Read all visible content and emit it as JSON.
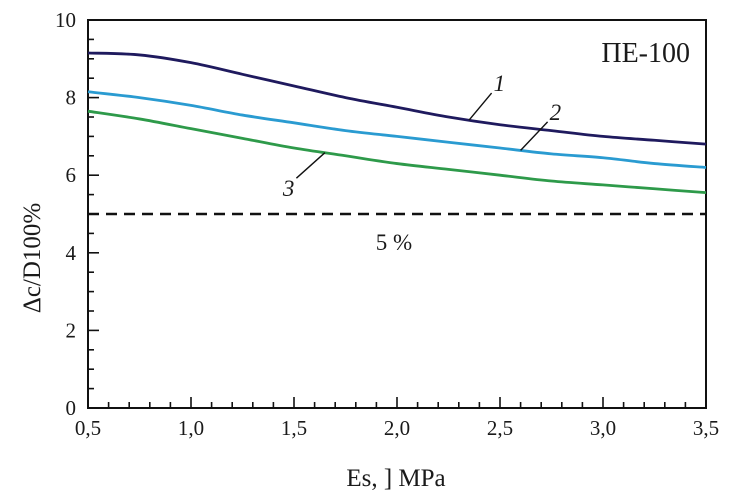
{
  "chart_data": {
    "type": "line",
    "title": "ПЕ-100",
    "ylabel": "Δc/D100%",
    "xlabel": "Es, ] MPa",
    "xlim": [
      0.5,
      3.5
    ],
    "ylim": [
      0,
      10
    ],
    "x_ticks": [
      "0,5",
      "1,0",
      "1,5",
      "2,0",
      "2,5",
      "3,0",
      "3,5"
    ],
    "y_ticks": [
      "0",
      "2",
      "4",
      "6",
      "8",
      "10"
    ],
    "grid": false,
    "series": [
      {
        "name": "1",
        "color": "#1f1a5e",
        "x": [
          0.5,
          0.75,
          1.0,
          1.25,
          1.5,
          1.75,
          2.0,
          2.25,
          2.5,
          2.75,
          3.0,
          3.25,
          3.5
        ],
        "y": [
          9.15,
          9.1,
          8.9,
          8.6,
          8.3,
          8.0,
          7.75,
          7.5,
          7.3,
          7.15,
          7.0,
          6.9,
          6.8
        ]
      },
      {
        "name": "2",
        "color": "#2a9bd1",
        "x": [
          0.5,
          0.75,
          1.0,
          1.25,
          1.5,
          1.75,
          2.0,
          2.25,
          2.5,
          2.75,
          3.0,
          3.25,
          3.5
        ],
        "y": [
          8.15,
          8.0,
          7.8,
          7.55,
          7.35,
          7.15,
          7.0,
          6.85,
          6.7,
          6.55,
          6.45,
          6.3,
          6.2
        ]
      },
      {
        "name": "3",
        "color": "#2e9a4a",
        "x": [
          0.5,
          0.75,
          1.0,
          1.25,
          1.5,
          1.75,
          2.0,
          2.25,
          2.5,
          2.75,
          3.0,
          3.25,
          3.5
        ],
        "y": [
          7.65,
          7.45,
          7.2,
          6.95,
          6.7,
          6.5,
          6.3,
          6.15,
          6.0,
          5.85,
          5.75,
          5.65,
          5.55
        ]
      }
    ],
    "reference_line": {
      "y": 5.0,
      "label": "5 %",
      "style": "dashed",
      "color": "#111111"
    },
    "curve_labels": [
      {
        "text": "1",
        "series": 0,
        "at_x": 2.35
      },
      {
        "text": "2",
        "series": 1,
        "at_x": 2.6
      },
      {
        "text": "3",
        "series": 2,
        "at_x": 1.65
      }
    ]
  }
}
